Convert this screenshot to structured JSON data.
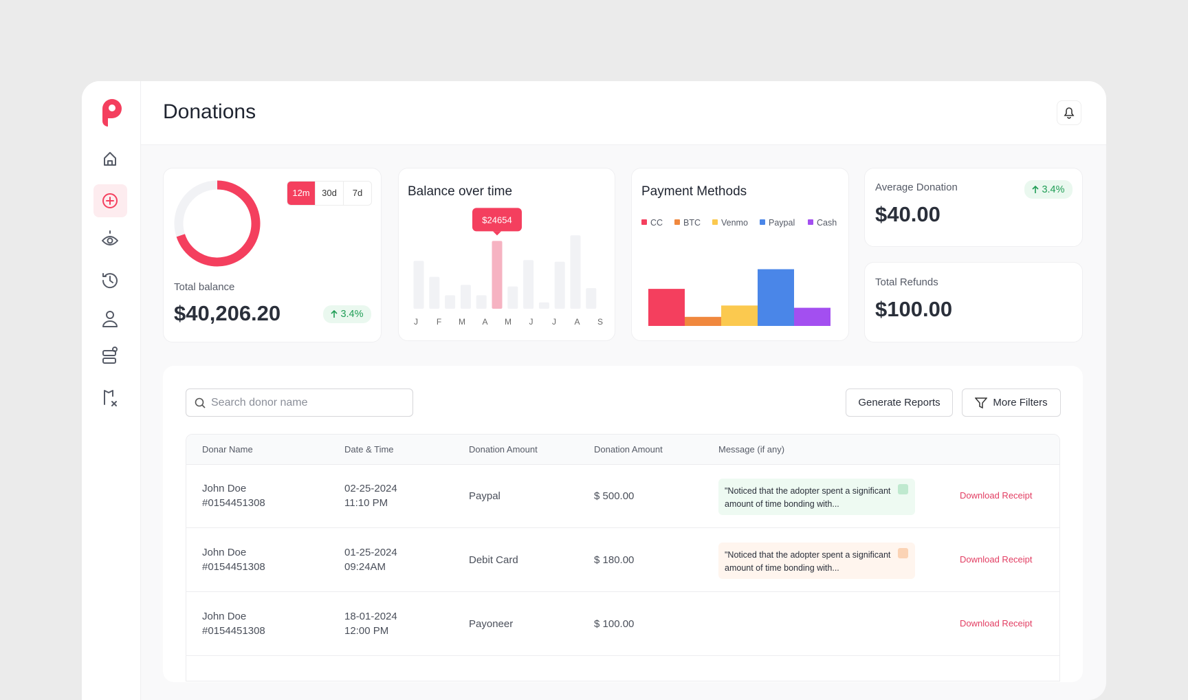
{
  "header": {
    "title": "Donations"
  },
  "balance_card": {
    "tabs": [
      "12m",
      "30d",
      "7d"
    ],
    "label": "Total balance",
    "value": "$40,206.20",
    "change": "3.4%"
  },
  "stats": [
    {
      "label": "Average Donation",
      "value": "$40.00",
      "change": "3.4%"
    },
    {
      "label": "Total Refunds",
      "value": "$100.00"
    }
  ],
  "toolbar": {
    "search_placeholder": "Search donor name",
    "buttons": [
      "Generate Reports",
      "More Filters"
    ]
  },
  "table": {
    "columns": [
      "Donar Name",
      "Date & Time",
      "Donation Amount",
      "Donation Amount",
      "Message (if any)"
    ],
    "rows": [
      {
        "name": "John Doe",
        "id": "#0154451308",
        "date": "02-25-2024",
        "time": "11:10 PM",
        "method": "Paypal",
        "amount": "$ 500.00",
        "message": "\"Noticed that the adopter spent a significant amount of time bonding with...",
        "tone": "green",
        "action": "Download Receipt"
      },
      {
        "name": "John Doe",
        "id": "#0154451308",
        "date": "01-25-2024",
        "time": "09:24AM",
        "method": "Debit Card",
        "amount": "$ 180.00",
        "message": "\"Noticed that the adopter spent a significant amount of time bonding with...",
        "tone": "orange",
        "action": "Download Receipt"
      },
      {
        "name": "John Doe",
        "id": "#0154451308",
        "date": "18-01-2024",
        "time": "12:00 PM",
        "method": "Payoneer",
        "amount": "$ 100.00",
        "action": "Download Receipt"
      }
    ]
  },
  "chart_data": [
    {
      "type": "donut",
      "values": [
        70,
        30
      ],
      "colors": [
        "#f43f5e",
        "#f1f2f5"
      ]
    },
    {
      "type": "bar",
      "title": "Balance over time",
      "categories": [
        "J",
        null,
        "F",
        "M",
        null,
        "A",
        "M",
        null,
        "J",
        "J",
        "A",
        "S"
      ],
      "values": [
        17400,
        11600,
        4900,
        8700,
        4900,
        24654,
        8100,
        17700,
        2300,
        17100,
        26700,
        7500
      ],
      "value_labels": [
        null,
        null,
        null,
        null,
        null,
        "$24654",
        null,
        null,
        null,
        null,
        null,
        null
      ],
      "ylim": [
        0,
        30000
      ],
      "color": "#f1f2f5",
      "highlight_color": "#f6b3c2",
      "tooltip_color": "#f43f5e"
    },
    {
      "type": "bar",
      "title": "Payment Methods",
      "categories": [
        "CC",
        "BTC",
        "Venmo",
        "Paypal",
        "Cash"
      ],
      "values": [
        49,
        12,
        27,
        75,
        24
      ],
      "colors": [
        "#f43f5e",
        "#f0883e",
        "#fbc94f",
        "#4a86e8",
        "#a34ff0"
      ],
      "ylim": [
        0,
        100
      ],
      "legend": "top-left"
    }
  ]
}
